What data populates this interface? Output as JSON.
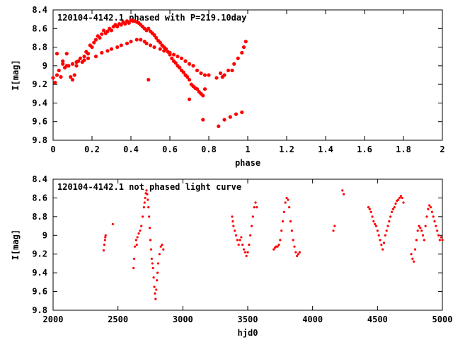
{
  "chart_data": [
    {
      "type": "scatter",
      "title": "120104-4142.1 phased with P=219.10day",
      "xlabel": "phase",
      "ylabel": "I[mag]",
      "xlim": [
        0,
        2
      ],
      "ylim": [
        9.8,
        8.4
      ],
      "y_inverted": true,
      "xticks": [
        "0",
        "0.2",
        "0.4",
        "0.6",
        "0.8",
        "1",
        "1.2",
        "1.4",
        "1.6",
        "1.8",
        "2"
      ],
      "yticks": [
        "8.4",
        "8.6",
        "8.8",
        "9",
        "9.2",
        "9.4",
        "9.6",
        "9.8"
      ],
      "marker": "star",
      "color": "#ff0000",
      "grid": false,
      "series": [
        {
          "x": [
            0.0,
            0.01,
            0.02,
            0.03,
            0.04,
            0.05,
            0.06,
            0.07,
            0.08,
            0.09,
            0.1,
            0.11,
            0.12,
            0.13,
            0.14,
            0.15,
            0.16,
            0.17,
            0.18,
            0.19,
            0.2,
            0.21,
            0.22,
            0.23,
            0.24,
            0.25,
            0.26,
            0.27,
            0.28,
            0.29,
            0.3,
            0.31,
            0.32,
            0.33,
            0.34,
            0.35,
            0.36,
            0.37,
            0.38,
            0.39,
            0.4,
            0.41,
            0.42,
            0.43,
            0.44,
            0.45,
            0.46,
            0.47,
            0.48,
            0.49,
            0.5,
            0.51,
            0.52,
            0.53,
            0.54,
            0.55,
            0.56,
            0.57,
            0.58,
            0.59,
            0.6,
            0.61,
            0.62,
            0.63,
            0.64,
            0.65,
            0.66,
            0.67,
            0.68,
            0.69,
            0.7,
            0.71,
            0.72,
            0.73,
            0.74,
            0.75,
            0.76,
            0.77,
            0.78,
            0.8,
            0.84,
            0.86,
            0.87,
            0.88,
            0.9,
            0.92,
            0.93,
            0.95,
            0.97,
            0.98,
            0.99,
            0.02,
            0.05,
            0.07,
            0.1,
            0.12,
            0.16,
            0.18,
            0.22,
            0.25,
            0.28,
            0.3,
            0.33,
            0.35,
            0.38,
            0.4,
            0.43,
            0.45,
            0.47,
            0.48,
            0.5,
            0.52,
            0.55,
            0.57,
            0.6,
            0.62,
            0.64,
            0.66,
            0.68,
            0.7,
            0.72,
            0.74,
            0.76,
            0.78,
            0.85,
            0.88,
            0.91,
            0.94,
            0.97,
            0.49,
            0.7,
            0.77
          ],
          "y": [
            9.13,
            9.18,
            9.1,
            9.05,
            9.12,
            8.98,
            9.02,
            8.87,
            9.0,
            9.12,
            9.15,
            9.1,
            9.0,
            8.95,
            8.92,
            8.96,
            8.9,
            8.85,
            8.87,
            8.78,
            8.8,
            8.75,
            8.72,
            8.68,
            8.7,
            8.66,
            8.62,
            8.65,
            8.63,
            8.6,
            8.62,
            8.58,
            8.56,
            8.58,
            8.55,
            8.56,
            8.53,
            8.55,
            8.52,
            8.54,
            8.51,
            8.52,
            8.52,
            8.53,
            8.54,
            8.56,
            8.58,
            8.6,
            8.62,
            8.6,
            8.63,
            8.65,
            8.67,
            8.7,
            8.73,
            8.75,
            8.78,
            8.8,
            8.82,
            8.85,
            8.88,
            8.92,
            8.95,
            8.97,
            9.0,
            9.02,
            9.05,
            9.07,
            9.1,
            9.12,
            9.15,
            9.2,
            9.22,
            9.24,
            9.25,
            9.28,
            9.3,
            9.32,
            9.25,
            9.1,
            9.13,
            9.08,
            9.12,
            9.1,
            9.05,
            9.05,
            8.98,
            8.92,
            8.86,
            8.8,
            8.74,
            8.87,
            8.95,
            9.0,
            8.98,
            8.96,
            8.94,
            8.92,
            8.9,
            8.86,
            8.84,
            8.82,
            8.8,
            8.78,
            8.76,
            8.74,
            8.72,
            8.72,
            8.74,
            8.76,
            8.78,
            8.8,
            8.82,
            8.84,
            8.86,
            8.88,
            8.9,
            8.92,
            8.95,
            8.98,
            9.0,
            9.05,
            9.08,
            9.1,
            9.65,
            9.58,
            9.55,
            9.52,
            9.5,
            9.15,
            9.36,
            9.58
          ]
        }
      ]
    },
    {
      "type": "scatter",
      "title": "120104-4142.1 not phased light curve",
      "xlabel": "hjd0",
      "ylabel": "I[mag]",
      "xlim": [
        2000,
        5000
      ],
      "ylim": [
        9.8,
        8.4
      ],
      "y_inverted": true,
      "xticks": [
        "2000",
        "2500",
        "3000",
        "3500",
        "4000",
        "4500",
        "5000"
      ],
      "yticks": [
        "8.4",
        "8.6",
        "8.8",
        "9",
        "9.2",
        "9.4",
        "9.6",
        "9.8"
      ],
      "marker": "dot",
      "color": "#ff0000",
      "grid": false,
      "series": [
        {
          "x": [
            2390,
            2395,
            2400,
            2402,
            2405,
            2460,
            2620,
            2625,
            2630,
            2640,
            2645,
            2650,
            2660,
            2670,
            2680,
            2690,
            2700,
            2705,
            2710,
            2715,
            2720,
            2725,
            2730,
            2735,
            2740,
            2745,
            2750,
            2755,
            2760,
            2765,
            2770,
            2775,
            2780,
            2785,
            2790,
            2795,
            2800,
            2805,
            2810,
            2820,
            2830,
            2840,
            2850,
            3380,
            3385,
            3390,
            3400,
            3410,
            3420,
            3430,
            3440,
            3450,
            3460,
            3470,
            3480,
            3490,
            3500,
            3510,
            3520,
            3530,
            3540,
            3550,
            3560,
            3570,
            3700,
            3710,
            3720,
            3730,
            3740,
            3750,
            3760,
            3770,
            3780,
            3790,
            3800,
            3810,
            3820,
            3830,
            3840,
            3850,
            3860,
            3870,
            3880,
            3890,
            3900,
            4160,
            4170,
            4230,
            4240,
            4430,
            4440,
            4450,
            4460,
            4470,
            4480,
            4490,
            4500,
            4510,
            4520,
            4530,
            4540,
            4550,
            4560,
            4570,
            4580,
            4590,
            4600,
            4610,
            4620,
            4630,
            4640,
            4650,
            4660,
            4670,
            4680,
            4690,
            4700,
            4760,
            4770,
            4780,
            4790,
            4800,
            4810,
            4820,
            4830,
            4840,
            4850,
            4860,
            4870,
            4880,
            4890,
            4900,
            4910,
            4920,
            4930,
            4940,
            4950,
            4960,
            4970,
            4980,
            4990,
            5000
          ],
          "y": [
            9.16,
            9.1,
            9.05,
            9.02,
            9.0,
            8.88,
            9.35,
            9.25,
            9.12,
            9.05,
            9.1,
            9.02,
            8.98,
            8.95,
            8.9,
            8.8,
            8.7,
            8.65,
            8.6,
            8.55,
            8.52,
            8.56,
            8.62,
            8.7,
            8.8,
            8.92,
            9.05,
            9.15,
            9.25,
            9.3,
            9.35,
            9.45,
            9.55,
            9.62,
            9.68,
            9.58,
            9.48,
            9.4,
            9.3,
            9.2,
            9.12,
            9.1,
            9.15,
            8.8,
            8.85,
            8.9,
            8.95,
            9.0,
            9.05,
            9.1,
            9.05,
            9.02,
            9.1,
            9.15,
            9.18,
            9.22,
            9.18,
            9.1,
            9.0,
            8.9,
            8.8,
            8.7,
            8.65,
            8.7,
            9.15,
            9.13,
            9.12,
            9.12,
            9.1,
            9.05,
            8.95,
            8.85,
            8.75,
            8.65,
            8.6,
            8.62,
            8.7,
            8.85,
            8.95,
            9.05,
            9.12,
            9.18,
            9.22,
            9.2,
            9.18,
            8.95,
            8.9,
            8.52,
            8.56,
            8.7,
            8.72,
            8.75,
            8.8,
            8.85,
            8.88,
            8.9,
            8.95,
            9.0,
            9.05,
            9.1,
            9.15,
            9.08,
            9.0,
            8.95,
            8.9,
            8.85,
            8.8,
            8.75,
            8.72,
            8.7,
            8.66,
            8.63,
            8.62,
            8.6,
            8.58,
            8.6,
            8.65,
            9.2,
            9.25,
            9.28,
            9.15,
            9.05,
            8.95,
            8.9,
            8.92,
            8.95,
            9.0,
            9.05,
            8.9,
            8.8,
            8.72,
            8.68,
            8.7,
            8.75,
            8.8,
            8.85,
            8.9,
            8.95,
            9.0,
            9.05,
            9.02,
            9.05
          ]
        }
      ]
    }
  ]
}
